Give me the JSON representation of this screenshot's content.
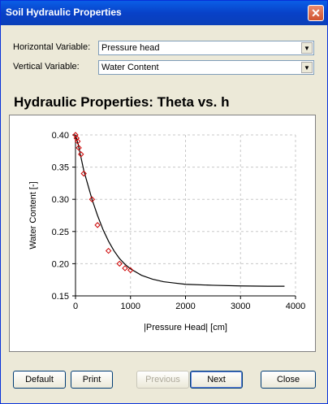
{
  "window": {
    "title": "Soil Hydraulic Properties"
  },
  "controls": {
    "horizontal_label": "Horizontal Variable:",
    "horizontal_value": "Pressure head",
    "vertical_label": "Vertical Variable:",
    "vertical_value": "Water Content"
  },
  "heading": "Hydraulic Properties:  Theta vs. h",
  "buttons": {
    "default": "Default",
    "print": "Print",
    "previous": "Previous",
    "next": "Next",
    "close": "Close"
  },
  "chart_data": {
    "type": "line",
    "xlabel": "|Pressure Head| [cm]",
    "ylabel": "Water Content [-]",
    "xlim": [
      0,
      4000
    ],
    "ylim": [
      0.15,
      0.4
    ],
    "xticks": [
      0,
      1000,
      2000,
      3000,
      4000
    ],
    "yticks": [
      0.15,
      0.2,
      0.25,
      0.3,
      0.35,
      0.4
    ],
    "grid": true,
    "series": [
      {
        "style": "line",
        "color": "#000000",
        "x": [
          0,
          50,
          100,
          150,
          200,
          300,
          400,
          500,
          600,
          700,
          800,
          900,
          1000,
          1200,
          1400,
          1600,
          1800,
          2000,
          2500,
          3000,
          3500,
          3800
        ],
        "y": [
          0.4,
          0.385,
          0.365,
          0.345,
          0.33,
          0.3,
          0.275,
          0.253,
          0.235,
          0.22,
          0.208,
          0.199,
          0.192,
          0.182,
          0.176,
          0.172,
          0.17,
          0.168,
          0.1665,
          0.1655,
          0.165,
          0.165
        ]
      },
      {
        "style": "markers",
        "color": "#cc0000",
        "x": [
          0,
          20,
          40,
          60,
          100,
          150,
          300,
          400,
          600,
          800,
          900,
          1000
        ],
        "y": [
          0.4,
          0.395,
          0.39,
          0.38,
          0.37,
          0.34,
          0.3,
          0.26,
          0.22,
          0.2,
          0.193,
          0.19
        ]
      }
    ]
  }
}
